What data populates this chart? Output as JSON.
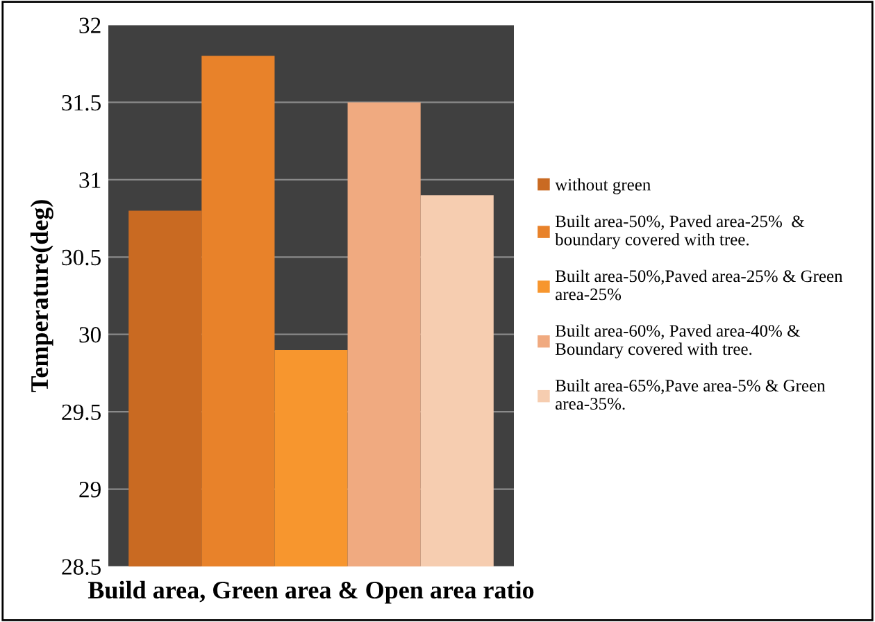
{
  "chart_data": {
    "type": "bar",
    "xlabel": "Build area, Green area & Open area ratio",
    "ylabel": "Temperature(deg)",
    "categories": [
      null
    ],
    "series": [
      {
        "name": "without green",
        "color": "#c96a22",
        "values": [
          30.8
        ]
      },
      {
        "name": "Built area-50%, Paved area-25%  &\nboundary covered with tree.",
        "color": "#e8822a",
        "values": [
          31.8
        ]
      },
      {
        "name": "Built area-50%,Paved area-25% & Green\narea-25%",
        "color": "#f7962e",
        "values": [
          29.9
        ]
      },
      {
        "name": "Built area-60%, Paved area-40% &\nBoundary covered with tree.",
        "color": "#f0aa80",
        "values": [
          31.5
        ]
      },
      {
        "name": "Built area-65%,Pave area-5% & Green\narea-35%.",
        "color": "#f6cdb0",
        "values": [
          30.9
        ]
      }
    ],
    "ylim": [
      28.5,
      32
    ],
    "yticks": [
      28.5,
      29,
      29.5,
      30,
      30.5,
      31,
      31.5,
      32
    ],
    "grid": "y",
    "legend": "right"
  }
}
